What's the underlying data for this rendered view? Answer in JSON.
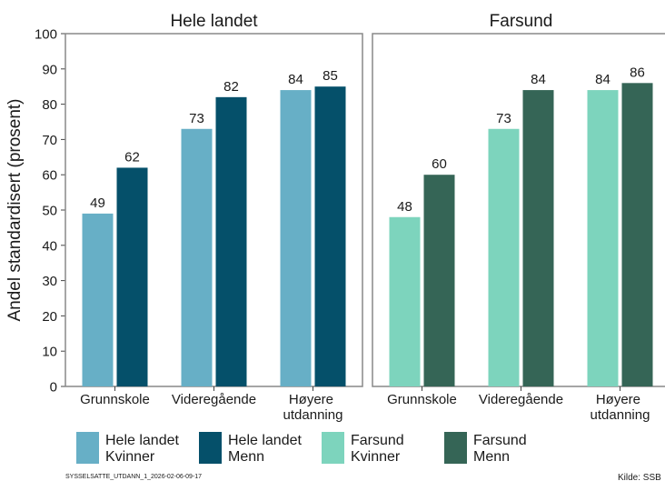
{
  "chart_data": {
    "type": "bar",
    "y_label": "Andel standardisert (prosent)",
    "ylim": [
      0,
      100
    ],
    "yticks": [
      0,
      10,
      20,
      30,
      40,
      50,
      60,
      70,
      80,
      90,
      100
    ],
    "panels": [
      {
        "title": "Hele landet",
        "categories": [
          "Grunnskole",
          "Videregående",
          "Høyere utdanning"
        ],
        "series": [
          {
            "name": "Hele landet Kvinner",
            "color": "#67afc6",
            "values": [
              49,
              73,
              84
            ]
          },
          {
            "name": "Hele landet Menn",
            "color": "#05506a",
            "values": [
              62,
              82,
              85
            ]
          }
        ]
      },
      {
        "title": "Farsund",
        "categories": [
          "Grunnskole",
          "Videregående",
          "Høyere utdanning"
        ],
        "series": [
          {
            "name": "Farsund Kvinner",
            "color": "#7dd4bd",
            "values": [
              48,
              73,
              84
            ]
          },
          {
            "name": "Farsund Menn",
            "color": "#356556",
            "values": [
              60,
              84,
              86
            ]
          }
        ]
      }
    ],
    "footnote": "SYSSELSATTE_UTDANN_1_2026-02-06-09-17",
    "source": "Kilde: SSB"
  }
}
